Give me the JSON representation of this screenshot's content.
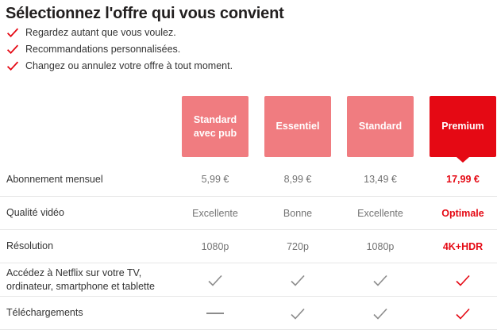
{
  "title": "Sélectionnez l'offre qui vous convient",
  "benefits": [
    "Regardez autant que vous voulez.",
    "Recommandations personnalisées.",
    "Changez ou annulez votre offre à tout moment."
  ],
  "plans": [
    {
      "name": "Standard avec pub",
      "selected": false
    },
    {
      "name": "Essentiel",
      "selected": false
    },
    {
      "name": "Standard",
      "selected": false
    },
    {
      "name": "Premium",
      "selected": true
    }
  ],
  "table": {
    "rows": [
      {
        "label": "Abonnement mensuel",
        "type": "text",
        "values": [
          "5,99 €",
          "8,99 €",
          "13,49 €",
          "17,99 €"
        ]
      },
      {
        "label": "Qualité vidéo",
        "type": "text",
        "values": [
          "Excellente",
          "Bonne",
          "Excellente",
          "Optimale"
        ]
      },
      {
        "label": "Résolution",
        "type": "text",
        "values": [
          "1080p",
          "720p",
          "1080p",
          "4K+HDR"
        ]
      },
      {
        "label": "Accédez à Netflix sur votre TV, ordinateur, smartphone et tablette",
        "type": "icon",
        "values": [
          "check",
          "check",
          "check",
          "check"
        ]
      },
      {
        "label": "Téléchargements",
        "type": "icon",
        "values": [
          "dash",
          "check",
          "check",
          "check"
        ]
      }
    ]
  },
  "colors": {
    "brand_red": "#e50914",
    "plan_card_pink": "#f07c80",
    "value_gray": "#737373",
    "check_gray": "#8c8c8c",
    "label_dark": "#333333",
    "title_dark": "#221f1f",
    "divider": "#e6e6e6"
  }
}
